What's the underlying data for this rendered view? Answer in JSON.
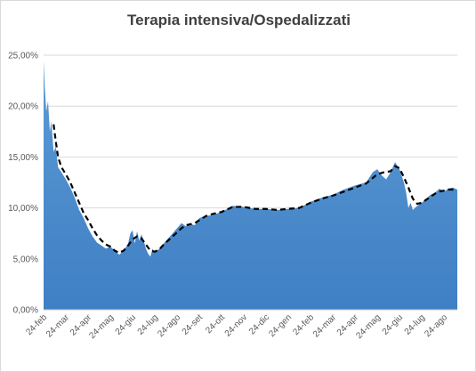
{
  "chart_data": {
    "type": "area",
    "title": "Terapia intensiva/Ospedalizzati",
    "xlabel": "",
    "ylabel": "",
    "ylim": [
      0,
      25
    ],
    "y_tick_labels": [
      "0,00%",
      "5,00%",
      "10,00%",
      "15,00%",
      "20,00%",
      "25,00%"
    ],
    "y_tick_values": [
      0,
      5,
      10,
      15,
      20,
      25
    ],
    "x_tick_labels": [
      "24-feb",
      "24-mar",
      "24-apr",
      "24-mag",
      "24-giu",
      "24-lug",
      "24-ago",
      "24-set",
      "24-ott",
      "24-nov",
      "24-dic",
      "24-gen",
      "24-feb",
      "24-mar",
      "24-apr",
      "24-mag",
      "24-giu",
      "24-lug",
      "24-ago"
    ],
    "x_range_months": [
      0,
      18.6
    ],
    "grid": true,
    "legend": "none",
    "colors": {
      "area": "#4a8fd4",
      "area_top": "#5b9bd5",
      "area_bottom": "#3f7fc4",
      "trend": "#000000",
      "grid": "#d9d9d9"
    },
    "series": [
      {
        "type": "area",
        "x": [
          0,
          0.05,
          0.12,
          0.2,
          0.28,
          0.35,
          0.45,
          0.55,
          0.65,
          0.8,
          1.0,
          1.2,
          1.4,
          1.6,
          1.8,
          2.0,
          2.2,
          2.4,
          2.6,
          2.8,
          3.0,
          3.2,
          3.4,
          3.6,
          3.8,
          3.9,
          4.0,
          4.1,
          4.2,
          4.3,
          4.4,
          4.5,
          4.6,
          4.7,
          4.8,
          4.9,
          5.0,
          5.2,
          5.4,
          5.6,
          5.8,
          6.0,
          6.2,
          6.4,
          6.6,
          6.8,
          7.0,
          7.3,
          7.6,
          8.0,
          8.5,
          9.0,
          9.5,
          10.0,
          10.5,
          11.0,
          11.5,
          12.0,
          12.5,
          13.0,
          13.5,
          14.0,
          14.5,
          14.8,
          15.0,
          15.2,
          15.4,
          15.6,
          15.8,
          16.0,
          16.2,
          16.3,
          16.4,
          16.5,
          16.6,
          16.8,
          17.0,
          17.2,
          17.4,
          17.6,
          17.8,
          18.0,
          18.2,
          18.4,
          18.6
        ],
        "values": [
          24.5,
          22.0,
          19.5,
          20.5,
          17.5,
          18.5,
          15.5,
          16.0,
          14.0,
          13.5,
          12.8,
          12.0,
          11.0,
          9.8,
          9.0,
          8.0,
          7.2,
          6.6,
          6.3,
          6.0,
          6.2,
          5.8,
          5.4,
          5.8,
          6.5,
          7.5,
          7.8,
          6.5,
          7.7,
          6.8,
          7.4,
          6.8,
          6.0,
          5.5,
          5.2,
          6.0,
          5.6,
          6.0,
          6.5,
          7.0,
          7.5,
          8.0,
          8.5,
          8.2,
          8.4,
          8.3,
          9.0,
          9.2,
          9.3,
          9.6,
          10.2,
          10.1,
          9.9,
          9.9,
          9.8,
          9.9,
          10.0,
          10.6,
          11.0,
          11.3,
          11.8,
          12.2,
          12.5,
          13.5,
          13.8,
          13.2,
          12.8,
          13.5,
          14.5,
          13.8,
          12.5,
          11.5,
          10.0,
          10.5,
          9.8,
          10.2,
          10.5,
          10.9,
          11.3,
          11.5,
          11.9,
          11.6,
          11.9,
          12.0,
          11.8
        ]
      },
      {
        "type": "line",
        "style": "dashed",
        "x": [
          0.45,
          0.55,
          0.65,
          0.8,
          1.0,
          1.2,
          1.4,
          1.6,
          1.8,
          2.0,
          2.2,
          2.4,
          2.6,
          2.8,
          3.0,
          3.2,
          3.4,
          3.6,
          3.8,
          4.0,
          4.2,
          4.4,
          4.6,
          4.8,
          5.0,
          5.2,
          5.4,
          5.6,
          5.8,
          6.0,
          6.2,
          6.4,
          6.6,
          6.8,
          7.0,
          7.3,
          7.6,
          8.0,
          8.5,
          9.0,
          9.5,
          10.0,
          10.5,
          11.0,
          11.5,
          12.0,
          12.5,
          13.0,
          13.5,
          14.0,
          14.5,
          15.0,
          15.3,
          15.6,
          15.8,
          16.0,
          16.2,
          16.4,
          16.6,
          16.8,
          17.0,
          17.2,
          17.4,
          17.6,
          17.8,
          18.0,
          18.2,
          18.4,
          18.55
        ],
        "values": [
          18.2,
          16.5,
          15.0,
          14.0,
          13.3,
          12.5,
          11.5,
          10.5,
          9.5,
          8.8,
          8.0,
          7.3,
          6.8,
          6.4,
          6.2,
          5.8,
          5.6,
          5.8,
          6.3,
          6.9,
          7.2,
          7.0,
          6.4,
          5.8,
          5.7,
          5.9,
          6.4,
          6.8,
          7.2,
          7.6,
          8.0,
          8.3,
          8.4,
          8.5,
          8.8,
          9.2,
          9.4,
          9.6,
          10.1,
          10.1,
          9.9,
          9.9,
          9.8,
          9.9,
          10.0,
          10.5,
          10.9,
          11.2,
          11.6,
          12.0,
          12.4,
          13.3,
          13.5,
          13.6,
          14.1,
          13.9,
          13.0,
          12.0,
          10.9,
          10.4,
          10.5,
          10.8,
          11.1,
          11.4,
          11.6,
          11.7,
          11.8,
          11.8,
          11.8
        ]
      }
    ]
  }
}
